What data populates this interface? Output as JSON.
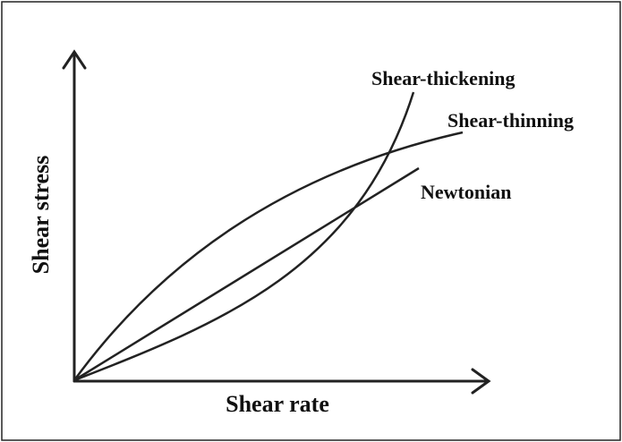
{
  "axes": {
    "y_label": "Shear stress",
    "x_label": "Shear rate"
  },
  "curves": [
    {
      "label": "Shear-thickening"
    },
    {
      "label": "Shear-thinning"
    },
    {
      "label": "Newtonian"
    }
  ]
}
